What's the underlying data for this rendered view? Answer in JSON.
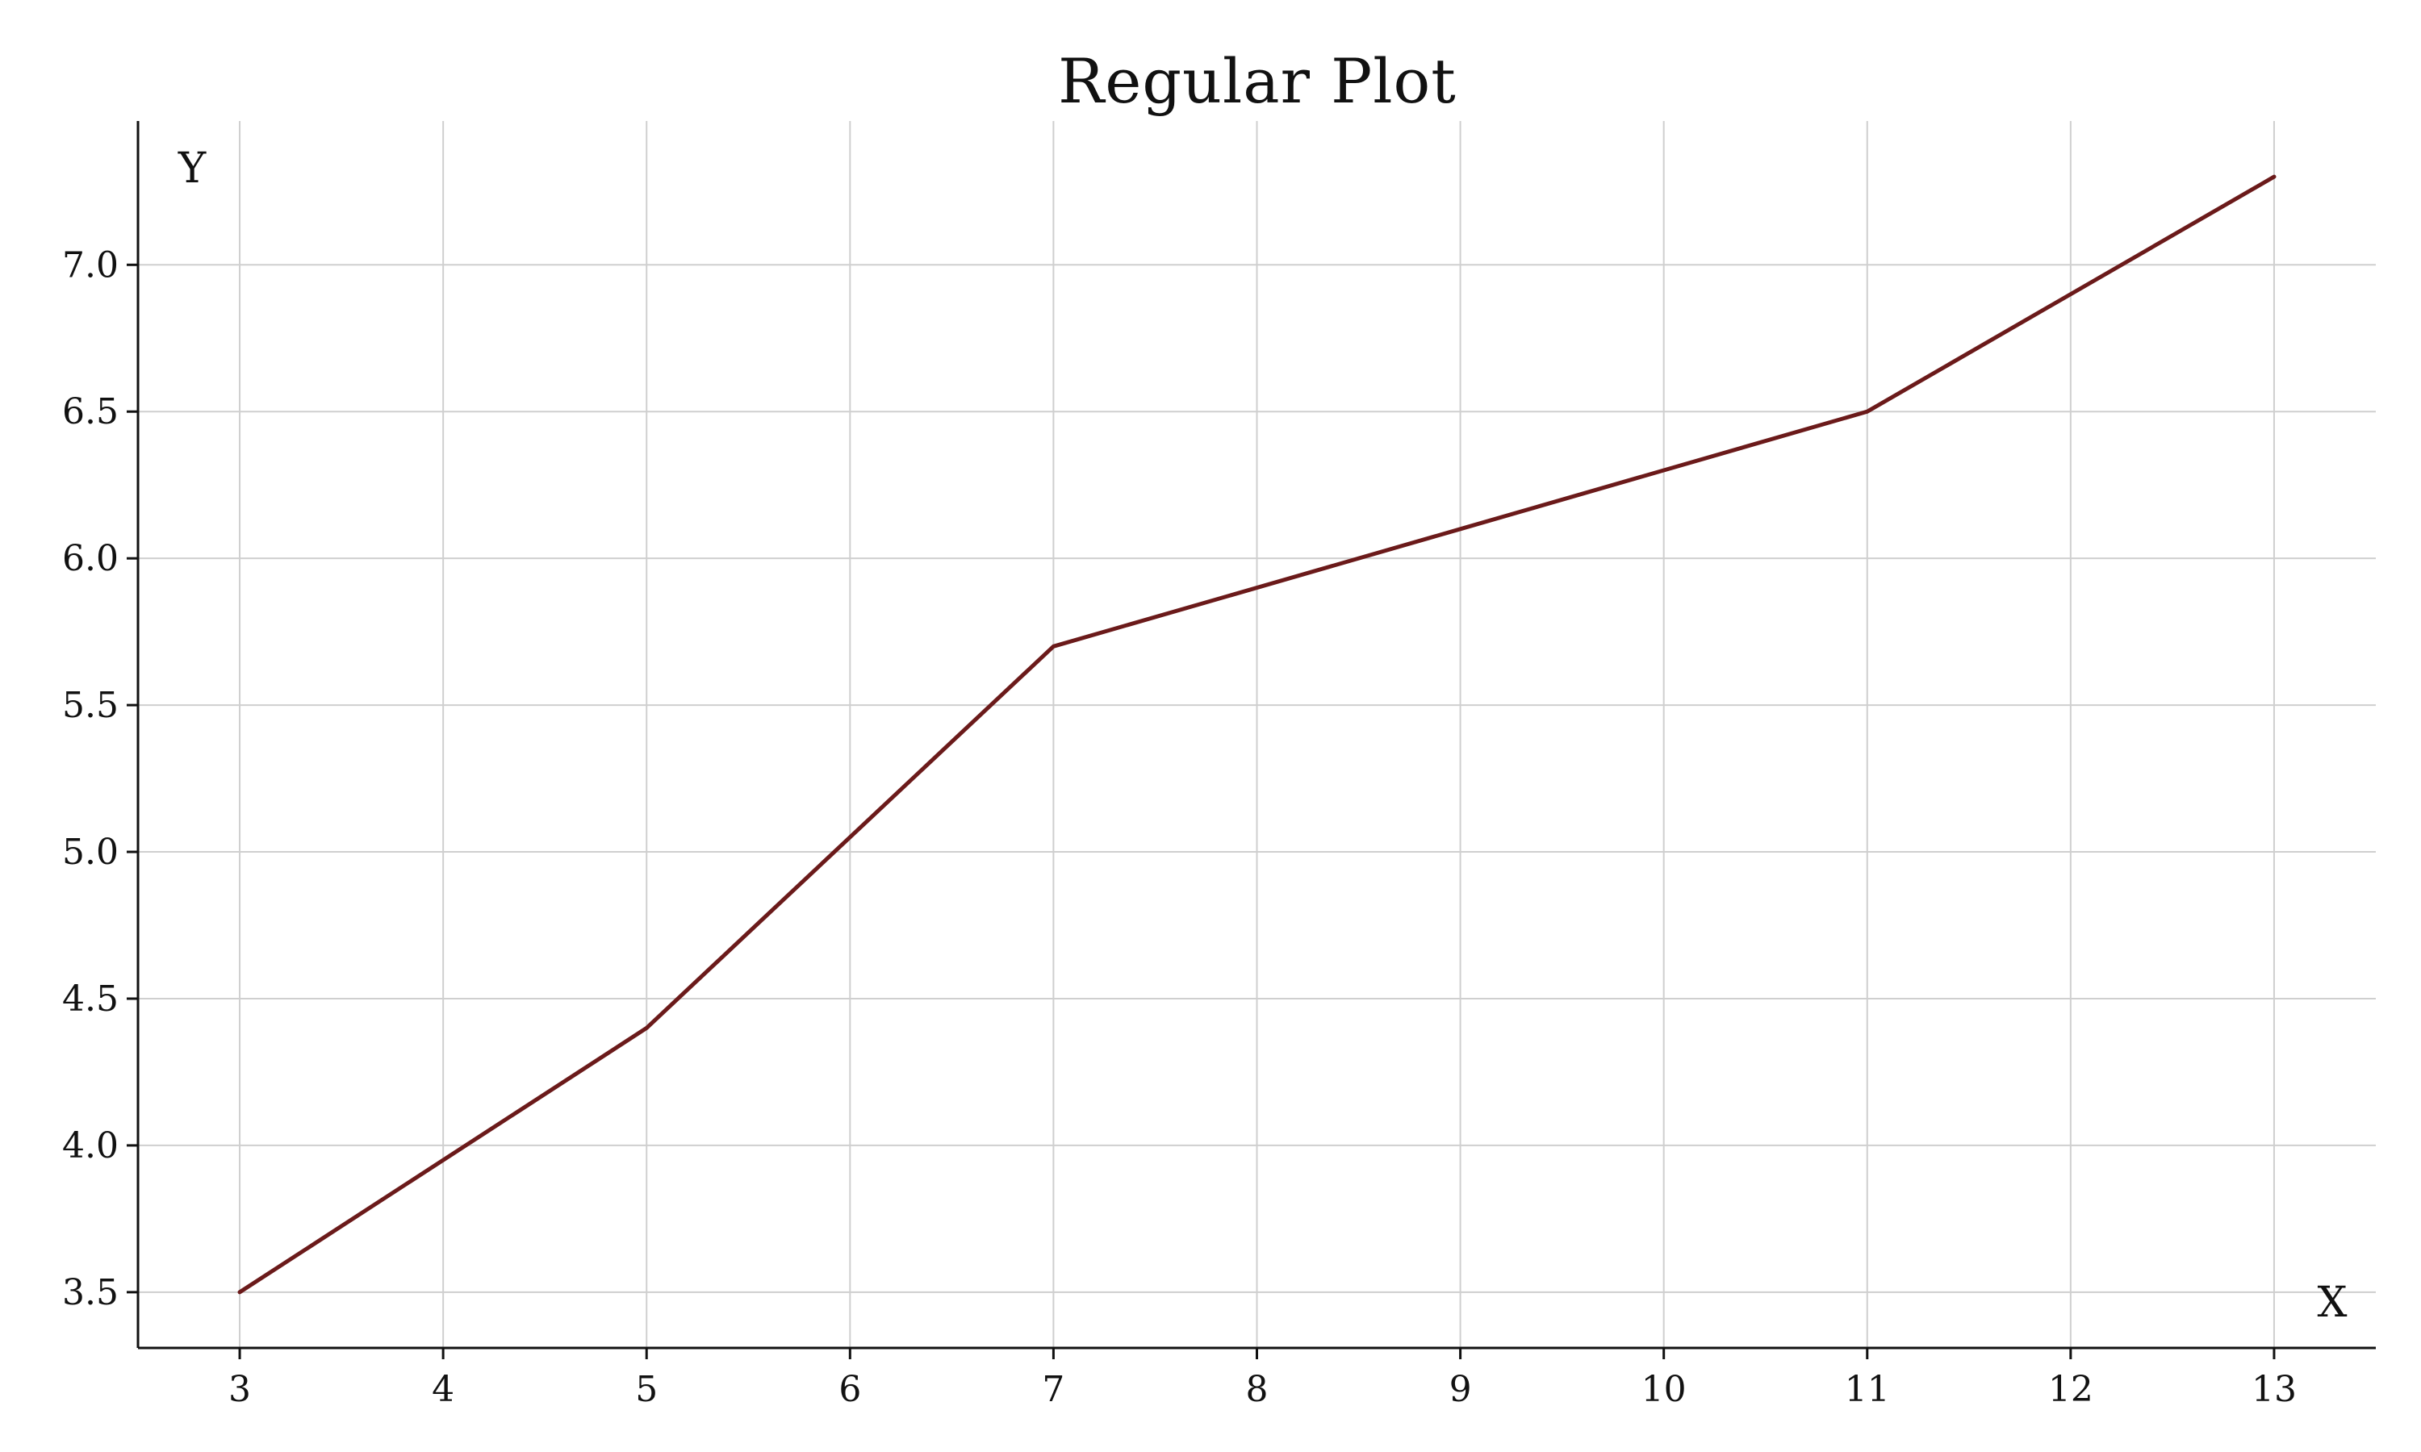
{
  "chart_data": {
    "type": "line",
    "title": "Regular Plot",
    "xlabel": "X",
    "ylabel": "Y",
    "x": [
      3,
      5,
      7,
      9,
      11,
      13
    ],
    "series": [
      {
        "values": [
          3.5,
          4.4,
          5.7,
          6.1,
          6.5,
          7.3
        ],
        "color": "#6b1a1a"
      }
    ],
    "xlim": [
      2.5,
      13.5
    ],
    "ylim": [
      3.31,
      7.49
    ],
    "xticks": [
      3,
      4,
      5,
      6,
      7,
      8,
      9,
      10,
      11,
      12,
      13
    ],
    "xtick_labels": [
      "3",
      "4",
      "5",
      "6",
      "7",
      "8",
      "9",
      "10",
      "11",
      "12",
      "13"
    ],
    "yticks": [
      3.5,
      4.0,
      4.5,
      5.0,
      5.5,
      6.0,
      6.5,
      7.0
    ],
    "ytick_labels": [
      "3.5",
      "4.0",
      "4.5",
      "5.0",
      "5.5",
      "6.0",
      "6.5",
      "7.0"
    ],
    "grid": true,
    "line_color": "#6b1a1a"
  }
}
